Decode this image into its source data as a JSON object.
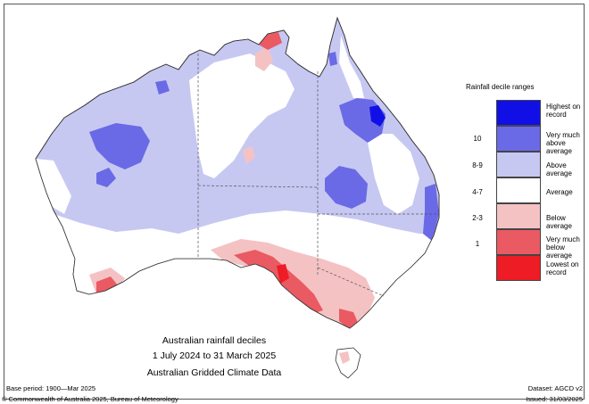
{
  "legend": {
    "title": "Rainfall decile ranges",
    "items": [
      {
        "label": "Highest on record",
        "range": "",
        "color": "#1010e6"
      },
      {
        "label": "Very much above average",
        "range": "10",
        "color": "#6a6ae6"
      },
      {
        "label": "Above average",
        "range": "8-9",
        "color": "#c6c8f2"
      },
      {
        "label": "Average",
        "range": "4-7",
        "color": "#ffffff"
      },
      {
        "label": "Below average",
        "range": "2-3",
        "color": "#f5c2c4"
      },
      {
        "label": "Very much below average",
        "range": "1",
        "color": "#ea5a62"
      },
      {
        "label": "Lowest on record",
        "range": "",
        "color": "#ee1c24"
      }
    ]
  },
  "map": {
    "title_line1": "Australian rainfall deciles",
    "title_line2": "1 July 2024 to 31 March 2025",
    "title_line3": "Australian Gridded Climate Data"
  },
  "footer": {
    "base_period": "Base period: 1900—Mar 2025",
    "dataset": "Dataset: AGCD v2",
    "copyright": "© Commonwealth of Australia 2025, Bureau of Meteorology",
    "issued": "Issued: 31/03/2025"
  }
}
